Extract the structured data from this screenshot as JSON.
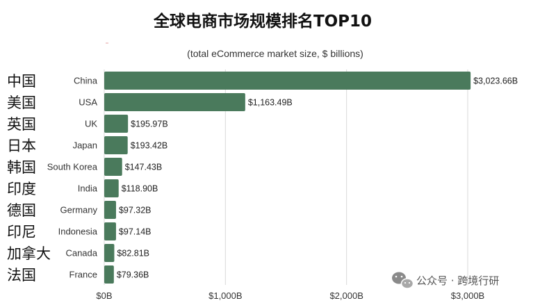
{
  "chart_data": {
    "type": "bar",
    "orientation": "horizontal",
    "title": "全球电商市场规模排名TOP10",
    "subtitle": "(total eCommerce market size, $ billions)",
    "categories": [
      "China",
      "USA",
      "UK",
      "Japan",
      "South Korea",
      "India",
      "Germany",
      "Indonesia",
      "Canada",
      "France"
    ],
    "categories_zh": [
      "中国",
      "美国",
      "英国",
      "日本",
      "韩国",
      "印度",
      "德国",
      "印尼",
      "加拿大",
      "法国"
    ],
    "values": [
      3023.66,
      1163.49,
      195.97,
      193.42,
      147.43,
      118.9,
      97.32,
      97.14,
      82.81,
      79.36
    ],
    "value_labels": [
      "$3,023.66B",
      "$1,163.49B",
      "$195.97B",
      "$193.42B",
      "$147.43B",
      "$118.90B",
      "$97.32B",
      "$97.14B",
      "$82.81B",
      "$79.36B"
    ],
    "xlim": [
      0,
      3000
    ],
    "xticks": [
      0,
      1000,
      2000,
      3000
    ],
    "xtick_labels": [
      "$0B",
      "$1,000B",
      "$2,000B",
      "$3,000B"
    ],
    "grid": true,
    "bar_color": "#4a7a5c",
    "xlabel": "",
    "ylabel": ""
  },
  "watermark": {
    "text": "公众号 · 跨境行研",
    "icon": "wechat-icon"
  }
}
